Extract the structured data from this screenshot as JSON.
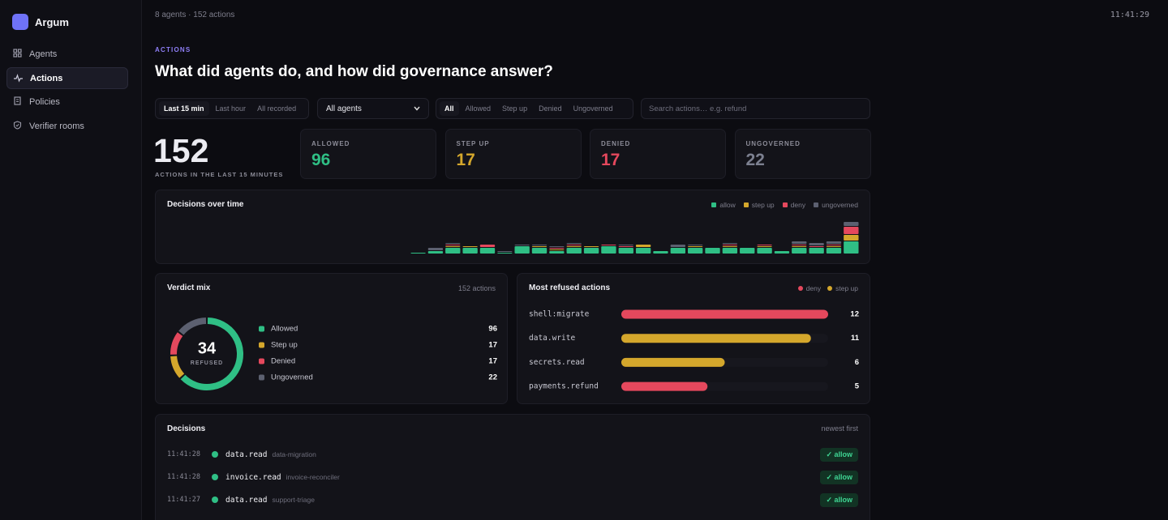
{
  "sidebar": {
    "brand": "Argum",
    "nav": [
      "Agents",
      "Actions",
      "Policies",
      "Verifier rooms"
    ],
    "active": 1
  },
  "topbar": {
    "summary": "8 agents · 152 actions",
    "clock": "11:41:29"
  },
  "header": {
    "eyebrow": "ACTIONS",
    "title": "What did agents do, and how did governance answer?"
  },
  "filters": {
    "time": [
      "Last 15 min",
      "Last hour",
      "All recorded"
    ],
    "time_active": 0,
    "agent": "All agents",
    "verdict": [
      "All",
      "Allowed",
      "Step up",
      "Denied",
      "Ungoverned"
    ],
    "verdict_active": 0,
    "search": "Search actions… e.g. refund"
  },
  "summary": {
    "total": 152,
    "total_label": "ACTIONS IN THE LAST 15 MINUTES",
    "cards": [
      {
        "label": "ALLOWED",
        "value": 96,
        "color": "#2fbf85"
      },
      {
        "label": "STEP UP",
        "value": 17,
        "color": "#d4a72c"
      },
      {
        "label": "DENIED",
        "value": 17,
        "color": "#e5485d"
      },
      {
        "label": "UNGOVERNED",
        "value": 22,
        "color": "#7c8090"
      }
    ]
  },
  "chart_data": [
    {
      "type": "bar",
      "stacked": true,
      "title": "Decisions over time",
      "categories": [
        null,
        null,
        null,
        null,
        null,
        null,
        null,
        null,
        null,
        null,
        null,
        null,
        null,
        null,
        null,
        null,
        null,
        null,
        null,
        null,
        null,
        null,
        null,
        null,
        null,
        null,
        null,
        null,
        null,
        null,
        null,
        null,
        null,
        null,
        null,
        null,
        null,
        null,
        null,
        null
      ],
      "series": [
        {
          "name": "allow",
          "color": "#2fbf85",
          "values": [
            0,
            0,
            0,
            0,
            0,
            0,
            0,
            0,
            0,
            0,
            0,
            0,
            0,
            0,
            1,
            2,
            4,
            4,
            4,
            1,
            5,
            4,
            2,
            4,
            4,
            5,
            4,
            4,
            2,
            4,
            4,
            4,
            4,
            4,
            4,
            2,
            4,
            4,
            4,
            8
          ]
        },
        {
          "name": "step up",
          "color": "#d4a72c",
          "values": [
            0,
            0,
            0,
            0,
            0,
            0,
            0,
            0,
            0,
            0,
            0,
            0,
            0,
            0,
            0,
            0,
            1,
            1,
            0,
            0,
            0,
            1,
            1,
            1,
            1,
            0,
            0,
            2,
            0,
            0,
            1,
            0,
            1,
            0,
            1,
            0,
            1,
            0,
            1,
            4
          ]
        },
        {
          "name": "deny",
          "color": "#e5485d",
          "values": [
            0,
            0,
            0,
            0,
            0,
            0,
            0,
            0,
            0,
            0,
            0,
            0,
            0,
            0,
            0,
            0,
            1,
            0,
            2,
            0,
            0,
            0,
            1,
            1,
            0,
            1,
            1,
            0,
            0,
            0,
            0,
            0,
            1,
            0,
            1,
            0,
            1,
            1,
            1,
            5
          ]
        },
        {
          "name": "ungoverned",
          "color": "#5c6070",
          "values": [
            0,
            0,
            0,
            0,
            0,
            0,
            0,
            0,
            0,
            0,
            0,
            0,
            0,
            0,
            0,
            2,
            1,
            0,
            0,
            1,
            1,
            1,
            1,
            1,
            0,
            0,
            1,
            0,
            0,
            2,
            1,
            0,
            1,
            0,
            0,
            0,
            2,
            2,
            2,
            3
          ]
        }
      ],
      "ylim": [
        0,
        20
      ]
    },
    {
      "type": "donut",
      "title": "Verdict mix",
      "subtitle": "152 actions",
      "center_value": 34,
      "center_label": "REFUSED",
      "categories": [
        "Allowed",
        "Step up",
        "Denied",
        "Ungoverned"
      ],
      "values": [
        96,
        17,
        17,
        22
      ],
      "colors": [
        "#2fbf85",
        "#d4a72c",
        "#e5485d",
        "#5c6070"
      ]
    },
    {
      "type": "hbar",
      "title": "Most refused actions",
      "categories": [
        "shell:migrate",
        "data.write",
        "secrets.read",
        "payments.refund"
      ],
      "series": [
        {
          "name": "deny",
          "color": "#e5485d",
          "values": [
            12,
            null,
            null,
            5
          ]
        },
        {
          "name": "step up",
          "color": "#d4a72c",
          "values": [
            null,
            11,
            6,
            null
          ]
        }
      ],
      "xlim": [
        0,
        12
      ]
    }
  ],
  "decisions": {
    "title": "Decisions",
    "note": "newest first",
    "rows": [
      {
        "time": "11:41:28",
        "action": "data.read",
        "agent": "data-migration",
        "verdict": "✓ allow"
      },
      {
        "time": "11:41:28",
        "action": "invoice.read",
        "agent": "invoice-reconciler",
        "verdict": "✓ allow"
      },
      {
        "time": "11:41:27",
        "action": "data.read",
        "agent": "support-triage",
        "verdict": "✓ allow"
      }
    ]
  }
}
